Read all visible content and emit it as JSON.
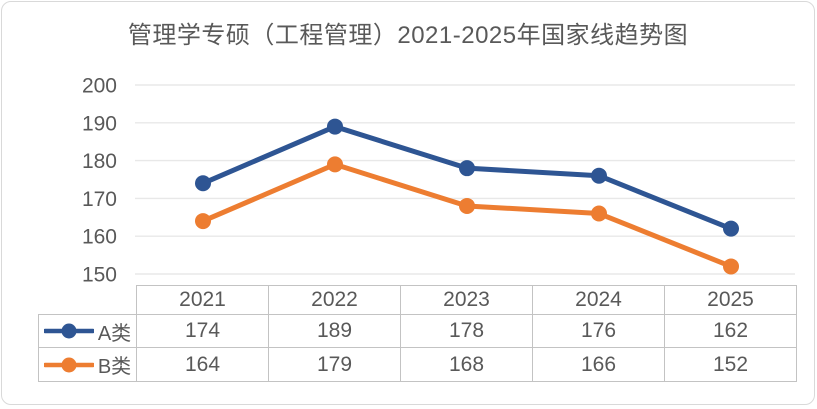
{
  "chart_data": {
    "type": "line",
    "title": "管理学专硕（工程管理）2021-2025年国家线趋势图",
    "categories": [
      "2021",
      "2022",
      "2023",
      "2024",
      "2025"
    ],
    "series": [
      {
        "name": "A类",
        "color": "#2E5593",
        "values": [
          174,
          189,
          178,
          176,
          162
        ]
      },
      {
        "name": "B类",
        "color": "#ED7D31",
        "values": [
          164,
          179,
          168,
          166,
          152
        ]
      }
    ],
    "yticks": [
      200,
      190,
      180,
      170,
      160,
      150
    ],
    "ylim": [
      150,
      200
    ],
    "xlabel": "",
    "ylabel": "",
    "grid": "horizontal",
    "legend_position": "table-left",
    "data_table_shown": true,
    "text_color": "#595959",
    "grid_color": "#e8e8e8",
    "table_border_color": "#c3c3c3",
    "background_color": "#ffffff"
  }
}
